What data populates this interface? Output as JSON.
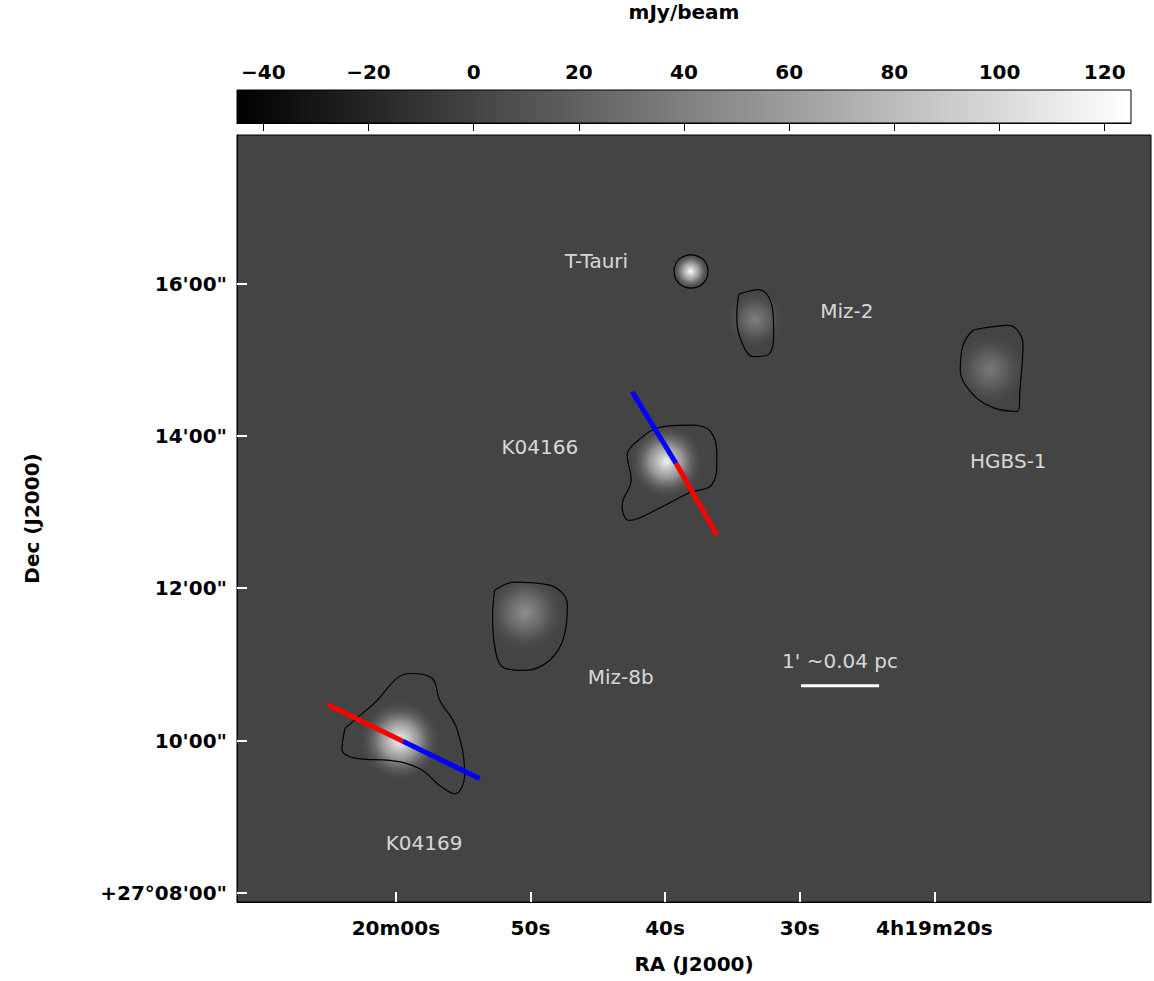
{
  "chart_data": {
    "type": "image",
    "xlabel": "RA (J2000)",
    "ylabel": "Dec (J2000)",
    "xlim": [
      71.8,
      3.9
    ],
    "xticks": [
      {
        "value": 60,
        "label": "20m00s"
      },
      {
        "value": 50,
        "label": "50s"
      },
      {
        "value": 40,
        "label": "40s"
      },
      {
        "value": 30,
        "label": "30s"
      },
      {
        "value": 20,
        "label": "4h19m20s"
      }
    ],
    "ylim": [
      7.88,
      17.95
    ],
    "yticks": [
      {
        "value": 8,
        "label": "+27°08'00\""
      },
      {
        "value": 10,
        "label": "10'00\""
      },
      {
        "value": 12,
        "label": "12'00\""
      },
      {
        "value": 14,
        "label": "14'00\""
      },
      {
        "value": 16,
        "label": "16'00\""
      }
    ],
    "colorbar": {
      "title": "mJy/beam",
      "lim": [
        -45,
        125
      ],
      "ticks": [
        {
          "value": -40,
          "label": "−40"
        },
        {
          "value": -20,
          "label": "−20"
        },
        0,
        20,
        40,
        60,
        80,
        100,
        120
      ]
    },
    "background": 0,
    "sources": [
      {
        "name": "T-Tauri",
        "ra": 38.1,
        "dec": 16.16,
        "peak": 125,
        "fwhm": 0.25,
        "label_at": [
          45.1,
          16.29
        ],
        "contour": [
          [
            38.07,
            16.38
          ],
          [
            37.18,
            16.32
          ],
          [
            36.81,
            16.16
          ],
          [
            37.18,
            16.0
          ],
          [
            38.07,
            15.94
          ],
          [
            38.96,
            16.0
          ],
          [
            39.33,
            16.16
          ],
          [
            38.96,
            16.32
          ]
        ]
      },
      {
        "name": "Miz-2",
        "ra": 33.3,
        "dec": 15.53,
        "peak": 40,
        "fwhm": 0.4,
        "label_at": [
          26.5,
          15.64
        ],
        "contour": [
          [
            34.52,
            15.86
          ],
          [
            33.04,
            15.92
          ],
          [
            32.07,
            15.72
          ],
          [
            31.93,
            15.39
          ],
          [
            32.3,
            15.07
          ],
          [
            33.41,
            15.04
          ],
          [
            34.37,
            15.26
          ],
          [
            34.67,
            15.59
          ]
        ]
      },
      {
        "name": "HGBS-1",
        "ra": 15.85,
        "dec": 14.87,
        "peak": 35,
        "fwhm": 0.5,
        "label_at": [
          14.5,
          13.67
        ],
        "contour": [
          [
            17.11,
            15.39
          ],
          [
            14.52,
            15.45
          ],
          [
            13.41,
            15.2
          ],
          [
            13.63,
            14.61
          ],
          [
            13.78,
            14.32
          ],
          [
            15.63,
            14.37
          ],
          [
            17.11,
            14.54
          ],
          [
            18.07,
            14.87
          ],
          [
            17.85,
            15.2
          ]
        ]
      },
      {
        "name": "K04166",
        "ra": 39.9,
        "dec": 13.66,
        "peak": 115,
        "fwhm": 0.5,
        "label_at": [
          49.3,
          13.86
        ],
        "contour": [
          [
            41.93,
            13.95
          ],
          [
            40.44,
            14.11
          ],
          [
            38.22,
            14.14
          ],
          [
            36.59,
            14.05
          ],
          [
            36.15,
            13.68
          ],
          [
            36.52,
            13.36
          ],
          [
            38.22,
            13.25
          ],
          [
            40.44,
            13.05
          ],
          [
            42.67,
            12.89
          ],
          [
            43.19,
            13.09
          ],
          [
            42.52,
            13.42
          ],
          [
            42.81,
            13.75
          ]
        ]
      },
      {
        "name": "Miz-8b",
        "ra": 50.4,
        "dec": 11.68,
        "peak": 50,
        "fwhm": 0.55,
        "label_at": [
          43.3,
          10.83
        ],
        "contour": [
          [
            52.67,
            11.97
          ],
          [
            51.19,
            12.08
          ],
          [
            48.59,
            12.04
          ],
          [
            47.26,
            11.78
          ],
          [
            47.48,
            11.38
          ],
          [
            48.59,
            11.05
          ],
          [
            50.44,
            10.92
          ],
          [
            51.93,
            10.95
          ],
          [
            52.67,
            11.25
          ],
          [
            52.81,
            11.64
          ]
        ]
      },
      {
        "name": "K04169",
        "ra": 59.7,
        "dec": 10.0,
        "peak": 120,
        "fwhm": 0.55,
        "label_at": [
          57.9,
          8.66
        ],
        "contour": [
          [
            63.78,
            10.16
          ],
          [
            61.78,
            10.46
          ],
          [
            58.96,
            10.88
          ],
          [
            57.33,
            10.82
          ],
          [
            56.74,
            10.53
          ],
          [
            55.48,
            10.16
          ],
          [
            54.89,
            9.54
          ],
          [
            55.63,
            9.3
          ],
          [
            56.74,
            9.41
          ],
          [
            58.22,
            9.63
          ],
          [
            60.44,
            9.74
          ],
          [
            62.67,
            9.76
          ],
          [
            64.0,
            9.89
          ]
        ]
      }
    ],
    "outflows": [
      {
        "source": "K04166",
        "segments": [
          {
            "color": "#0000ff",
            "points": [
              [
                42.44,
                14.58
              ],
              [
                39.19,
                13.64
              ]
            ]
          },
          {
            "color": "#ff0000",
            "points": [
              [
                39.19,
                13.64
              ],
              [
                36.15,
                12.7
              ]
            ]
          }
        ]
      },
      {
        "source": "K04169",
        "segments": [
          {
            "color": "#ff0000",
            "points": [
              [
                65.04,
                10.47
              ],
              [
                59.48,
                9.99
              ]
            ]
          },
          {
            "color": "#0000ff",
            "points": [
              [
                59.48,
                9.99
              ],
              [
                53.78,
                9.5
              ]
            ]
          }
        ]
      }
    ],
    "scale_bar": {
      "label": "1' ~0.04 pc",
      "start": [
        29.9,
        10.72
      ],
      "end": [
        24.1,
        10.72
      ],
      "label_at": [
        27.0,
        11.05
      ]
    }
  }
}
